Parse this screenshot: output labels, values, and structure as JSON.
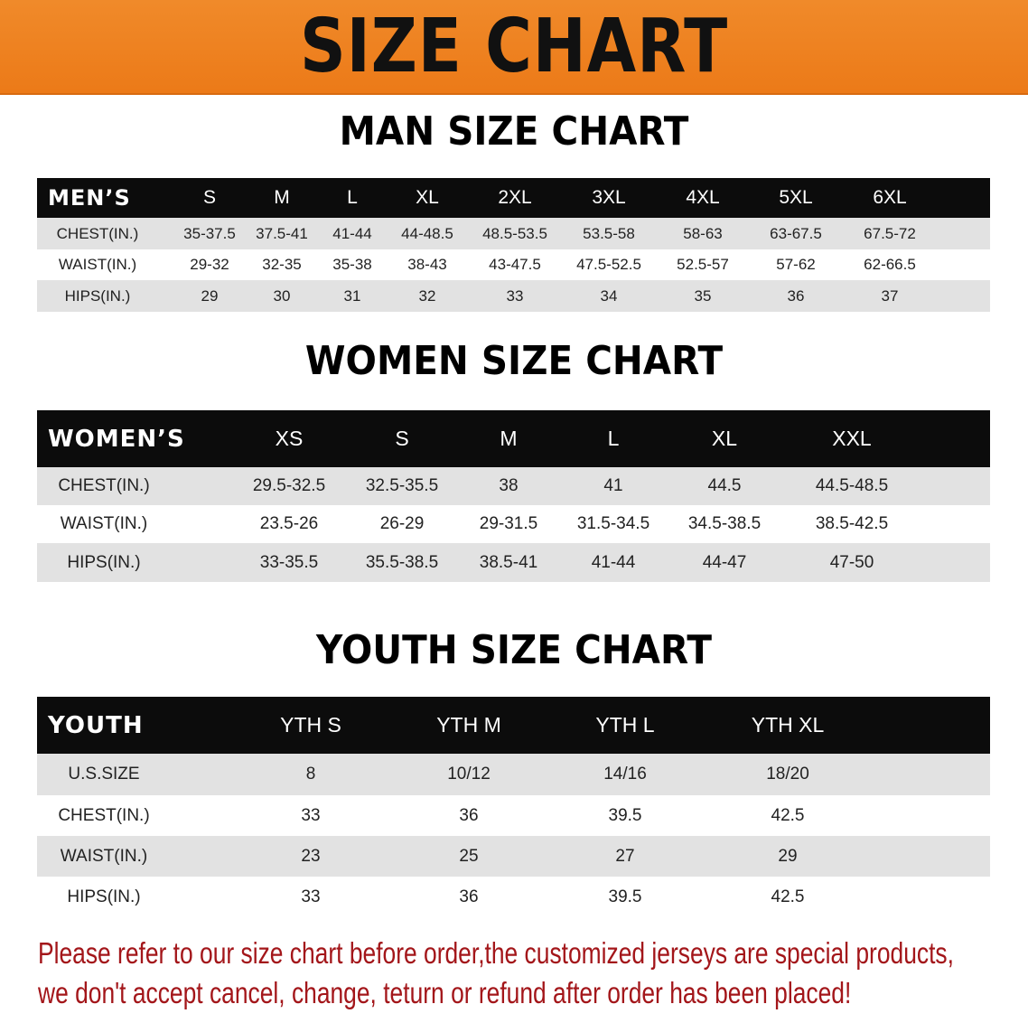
{
  "banner": {
    "title": "SIZE CHART",
    "color": "#ee7f20"
  },
  "men": {
    "title": "MAN SIZE CHART",
    "header": [
      "MEN’S",
      "S",
      "M",
      "L",
      "XL",
      "2XL",
      "3XL",
      "4XL",
      "5XL",
      "6XL"
    ],
    "rows": [
      [
        "CHEST(IN.)",
        "35-37.5",
        "37.5-41",
        "41-44",
        "44-48.5",
        "48.5-53.5",
        "53.5-58",
        "58-63",
        "63-67.5",
        "67.5-72"
      ],
      [
        "WAIST(IN.)",
        "29-32",
        "32-35",
        "35-38",
        "38-43",
        "43-47.5",
        "47.5-52.5",
        "52.5-57",
        "57-62",
        "62-66.5"
      ],
      [
        "HIPS(IN.)",
        "29",
        "30",
        "31",
        "32",
        "33",
        "34",
        "35",
        "36",
        "37"
      ]
    ]
  },
  "women": {
    "title": "WOMEN SIZE CHART",
    "header": [
      "WOMEN’S",
      "XS",
      "S",
      "M",
      "L",
      "XL",
      "XXL"
    ],
    "rows": [
      [
        "CHEST(IN.)",
        "29.5-32.5",
        "32.5-35.5",
        "38",
        "41",
        "44.5",
        "44.5-48.5"
      ],
      [
        "WAIST(IN.)",
        "23.5-26",
        "26-29",
        "29-31.5",
        "31.5-34.5",
        "34.5-38.5",
        "38.5-42.5"
      ],
      [
        "HIPS(IN.)",
        "33-35.5",
        "35.5-38.5",
        "38.5-41",
        "41-44",
        "44-47",
        "47-50"
      ]
    ]
  },
  "youth": {
    "title": "YOUTH SIZE CHART",
    "header": [
      "YOUTH",
      "YTH S",
      "YTH M",
      "YTH L",
      "YTH XL"
    ],
    "rows": [
      [
        "U.S.SIZE",
        "8",
        "10/12",
        "14/16",
        "18/20"
      ],
      [
        "CHEST(IN.)",
        "33",
        "36",
        "39.5",
        "42.5"
      ],
      [
        "WAIST(IN.)",
        "23",
        "25",
        "27",
        "29"
      ],
      [
        "HIPS(IN.)",
        "33",
        "36",
        "39.5",
        "42.5"
      ]
    ]
  },
  "note": {
    "line1": "Please refer to our size chart before order,the customized jerseys are special products,",
    "line2": "we don't accept cancel, change, teturn or refund after order has been placed!",
    "color": "#a3161a"
  }
}
